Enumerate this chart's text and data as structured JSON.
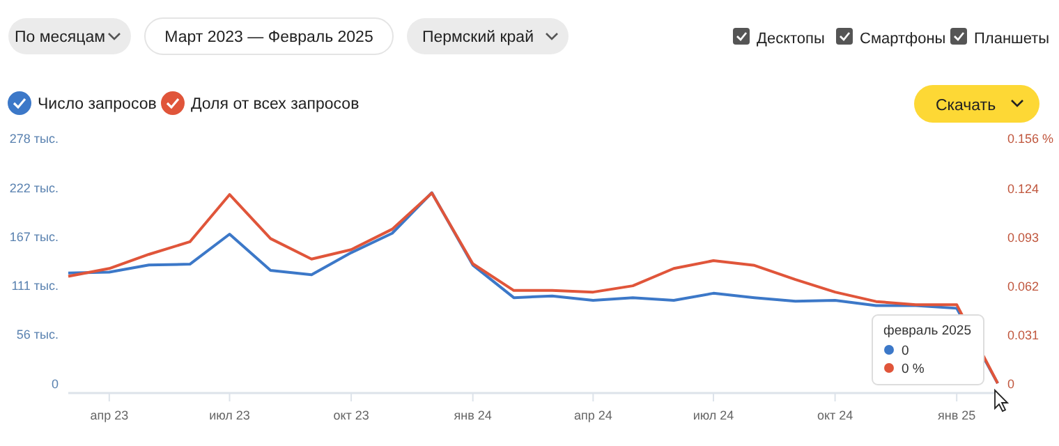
{
  "chart_data": {
    "type": "line",
    "x": [
      "2023-03",
      "2023-04",
      "2023-05",
      "2023-06",
      "2023-07",
      "2023-08",
      "2023-09",
      "2023-10",
      "2023-11",
      "2023-12",
      "2024-01",
      "2024-02",
      "2024-03",
      "2024-04",
      "2024-05",
      "2024-06",
      "2024-07",
      "2024-08",
      "2024-09",
      "2024-10",
      "2024-11",
      "2024-12",
      "2025-01",
      "2025-02"
    ],
    "series": [
      {
        "name": "Число запросов",
        "color": "#3c78c8",
        "values": [
          125,
          126,
          134,
          135,
          169,
          128,
          123,
          148,
          170,
          216,
          134,
          97,
          99,
          94,
          97,
          94,
          102,
          97,
          93,
          94,
          88,
          88,
          85,
          0
        ]
      },
      {
        "name": "Доля от всех запросов",
        "color": "#e0553a",
        "axis": "y2",
        "values": [
          0.068,
          0.073,
          0.082,
          0.09,
          0.12,
          0.092,
          0.079,
          0.085,
          0.098,
          0.121,
          0.076,
          0.059,
          0.059,
          0.058,
          0.062,
          0.073,
          0.078,
          0.075,
          0.066,
          0.058,
          0.052,
          0.05,
          0.05,
          0
        ]
      }
    ],
    "xlim": [
      "2023-03",
      "2025-02"
    ],
    "xticks": [
      {
        "value": "2023-04",
        "label": "апр 23"
      },
      {
        "value": "2023-07",
        "label": "июл 23"
      },
      {
        "value": "2023-10",
        "label": "окт 23"
      },
      {
        "value": "2024-01",
        "label": "янв 24"
      },
      {
        "value": "2024-04",
        "label": "апр 24"
      },
      {
        "value": "2024-07",
        "label": "июл 24"
      },
      {
        "value": "2024-10",
        "label": "окт 24"
      },
      {
        "value": "2025-01",
        "label": "янв 25"
      }
    ],
    "ylim": [
      0,
      278
    ],
    "yticks": [
      0,
      {
        "value": 56,
        "label": "56 тыс."
      },
      {
        "value": 111,
        "label": "111 тыс."
      },
      {
        "value": 167,
        "label": "167 тыс."
      },
      {
        "value": 222,
        "label": "222 тыс."
      },
      {
        "value": 278,
        "label": "278 тыс."
      }
    ],
    "y2lim": [
      0,
      0.156
    ],
    "y2ticks": [
      0,
      0.031,
      0.062,
      0.093,
      0.124,
      {
        "value": 0.156,
        "label": "0.156 %"
      }
    ],
    "grid": false,
    "legend": "top left",
    "marker": "none",
    "line_style": "solid",
    "annotations": [
      "По месяцам",
      "Март 2023 — Февраль 2025",
      "Пермский край",
      "Десктопы",
      "Смартфоны",
      "Планшеты",
      "Скачать",
      "февраль 2025",
      "0",
      "0 %"
    ]
  }
}
